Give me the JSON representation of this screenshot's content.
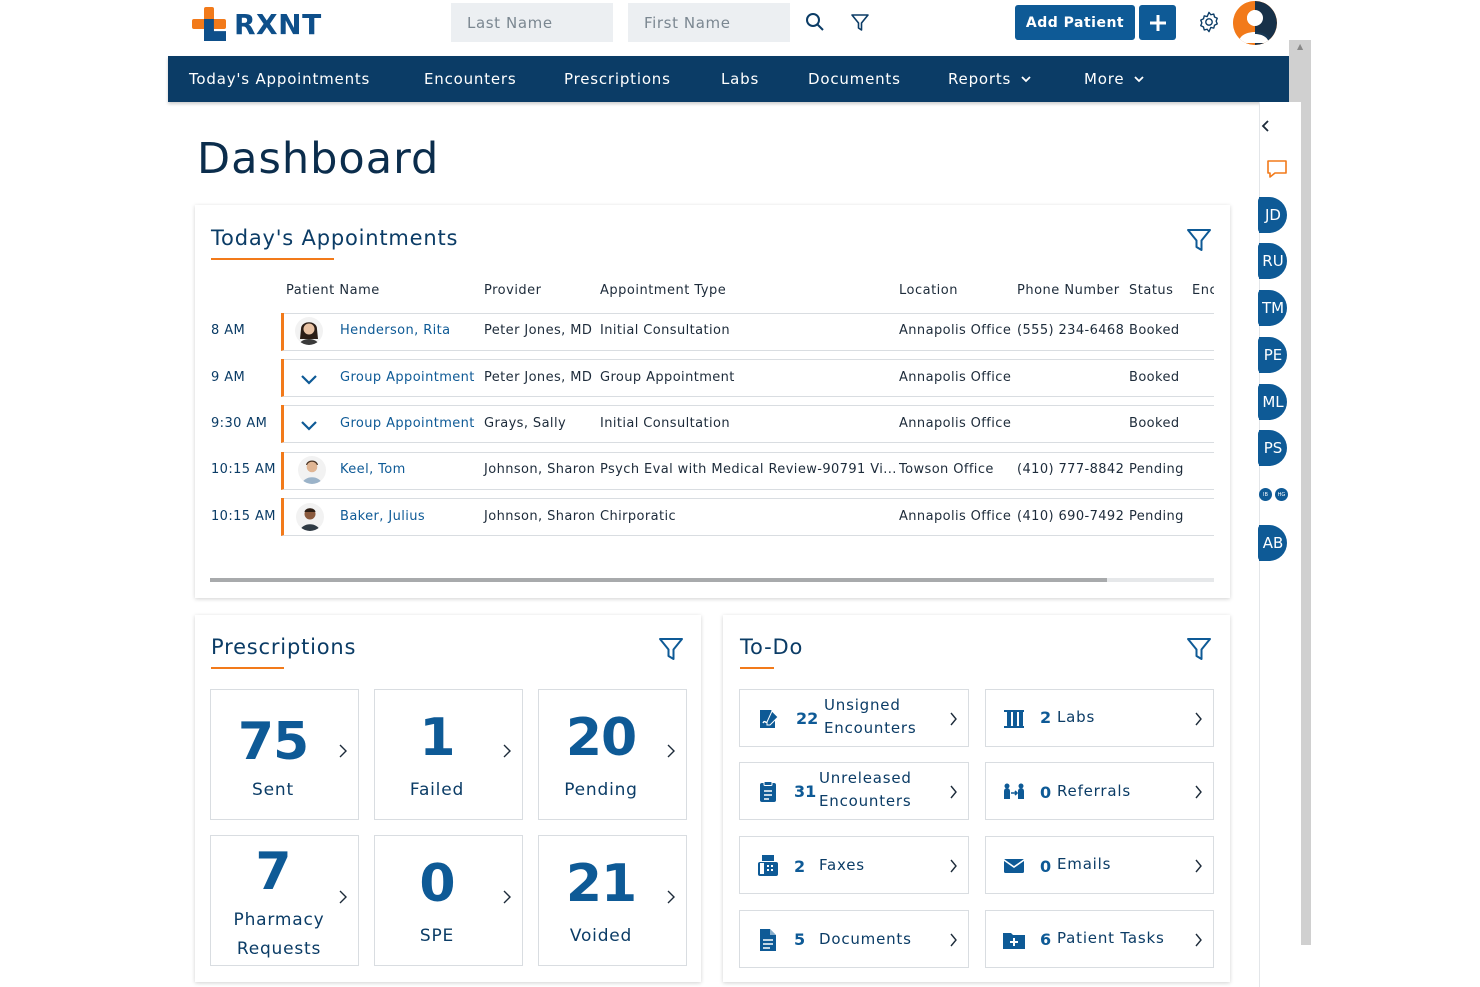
{
  "brand": {
    "name": "RXNT",
    "orange": "#f27a1a",
    "navy": "#0b3c66",
    "blue": "#0e5a96"
  },
  "header": {
    "last_name_placeholder": "Last Name",
    "first_name_placeholder": "First Name",
    "add_patient_label": "Add Patient",
    "icons": [
      "search-icon",
      "filter-icon",
      "plus-icon",
      "gear-icon",
      "user-avatar"
    ]
  },
  "nav": {
    "items": [
      {
        "label": "Today's Appointments"
      },
      {
        "label": "Encounters"
      },
      {
        "label": "Prescriptions"
      },
      {
        "label": "Labs"
      },
      {
        "label": "Documents"
      },
      {
        "label": "Reports"
      },
      {
        "label": "More"
      }
    ]
  },
  "page_title": "Dashboard",
  "appointments": {
    "title": "Today's Appointments",
    "columns": [
      "Patient Name",
      "Provider",
      "Appointment Type",
      "Location",
      "Phone Number",
      "Status",
      "Enc"
    ],
    "rows": [
      {
        "time": "8 AM",
        "patient": "Henderson, Rita",
        "provider": "Peter Jones, MD",
        "type": "Initial Consultation",
        "location": "Annapolis Office",
        "phone": "(555) 234-6468",
        "status": "Booked",
        "kind": "patient-female"
      },
      {
        "time": "9 AM",
        "patient": "Group Appointment",
        "provider": "Peter Jones, MD",
        "type": "Group Appointment",
        "location": "Annapolis Office",
        "phone": "",
        "status": "Booked",
        "kind": "group"
      },
      {
        "time": "9:30 AM",
        "patient": "Group Appointment",
        "provider": "Grays, Sally",
        "type": "Initial Consultation",
        "location": "Annapolis Office",
        "phone": "",
        "status": "Booked",
        "kind": "group"
      },
      {
        "time": "10:15 AM",
        "patient": "Keel, Tom",
        "provider": "Johnson, Sharon",
        "type": "Psych Eval with Medical Review-90791 Vi...",
        "location": "Towson Office",
        "phone": "(410) 777-8842",
        "status": "Pending",
        "kind": "patient-male"
      },
      {
        "time": "10:15 AM",
        "patient": "Baker, Julius",
        "provider": "Johnson, Sharon",
        "type": "Chirporatic",
        "location": "Annapolis Office",
        "phone": "(410) 690-7492",
        "status": "Pending",
        "kind": "patient-male2"
      }
    ]
  },
  "prescriptions": {
    "title": "Prescriptions",
    "tiles": [
      {
        "value": "75",
        "label": "Sent"
      },
      {
        "value": "1",
        "label": "Failed"
      },
      {
        "value": "20",
        "label": "Pending"
      },
      {
        "value": "7",
        "label": "Pharmacy Requests"
      },
      {
        "value": "0",
        "label": "SPE"
      },
      {
        "value": "21",
        "label": "Voided"
      }
    ]
  },
  "todo": {
    "title": "To-Do",
    "items": [
      {
        "count": "22",
        "label": "Unsigned Encounters",
        "icon": "sign-document-icon"
      },
      {
        "count": "2",
        "label": "Labs",
        "icon": "lab-flask-icon"
      },
      {
        "count": "31",
        "label": "Unreleased Encounters",
        "icon": "clipboard-icon"
      },
      {
        "count": "0",
        "label": "Referrals",
        "icon": "referral-people-icon"
      },
      {
        "count": "2",
        "label": "Faxes",
        "icon": "fax-icon"
      },
      {
        "count": "0",
        "label": "Emails",
        "icon": "email-icon"
      },
      {
        "count": "5",
        "label": "Documents",
        "icon": "document-icon"
      },
      {
        "count": "6",
        "label": "Patient Tasks",
        "icon": "folder-plus-icon"
      }
    ]
  },
  "rail": {
    "initials": [
      "JD",
      "RU",
      "TM",
      "PE",
      "ML",
      "PS",
      "AB"
    ],
    "mini": [
      "IB",
      "HG"
    ]
  }
}
